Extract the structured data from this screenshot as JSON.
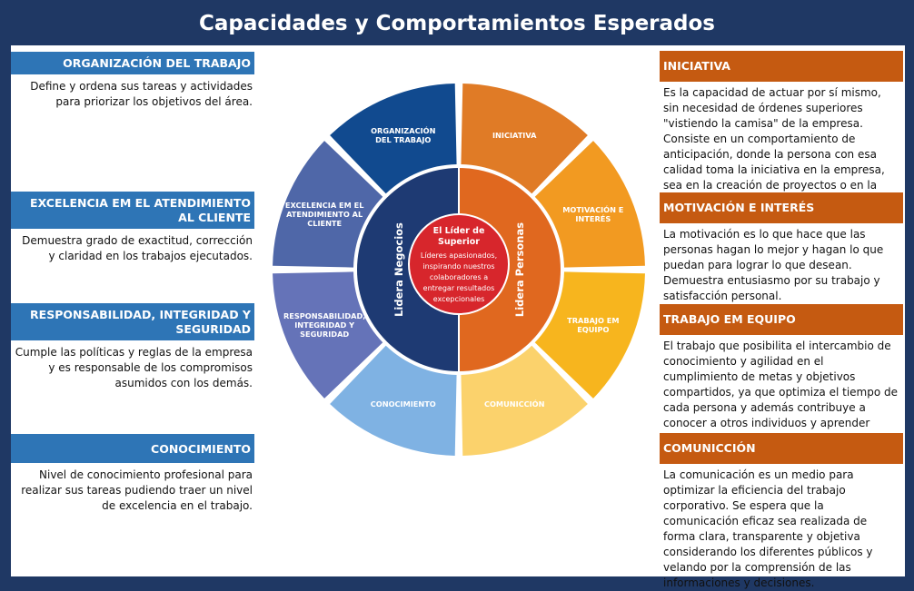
{
  "title": "Capacidades y Comportamientos Esperados",
  "left_items": [
    {
      "heading": "ORGANIZACIÓN DEL TRABAJO",
      "text": "Define y ordena sus tareas y actividades para priorizar los objetivos del área."
    },
    {
      "heading": "EXCELENCIA EM EL ATENDIMIENTO AL CLIENTE",
      "text": "Demuestra grado de exactitud, corrección y claridad en los trabajos ejecutados."
    },
    {
      "heading": "RESPONSABILIDAD, INTEGRIDAD Y SEGURIDAD",
      "text": "Cumple las políticas y reglas de la empresa y es responsable de los compromisos asumidos con los demás."
    },
    {
      "heading": "CONOCIMIENTO",
      "text": "Nivel de conocimiento profesional para realizar sus tareas pudiendo traer un nivel de excelencia en el trabajo."
    }
  ],
  "right_items": [
    {
      "heading": "INICIATIVA",
      "text": "Es la capacidad de actuar por sí mismo, sin necesidad de órdenes superiores \"vistiendo la camisa\" de la empresa. Consiste en un comportamiento de anticipación, donde la persona con esa calidad toma la iniciativa en la empresa, sea en la creación de proyectos o en la resolución de problemas."
    },
    {
      "heading": "MOTIVACIÓN E INTERÉS",
      "text": "La motivación es lo que hace que las personas hagan lo mejor y hagan lo que puedan para lograr lo que desean. Demuestra entusiasmo por su trabajo y satisfacción personal."
    },
    {
      "heading": "TRABAJO EM EQUIPO",
      "text": "El trabajo que posibilita el intercambio de conocimiento y agilidad en el cumplimiento de metas y objetivos compartidos, ya que optimiza el tiempo de cada persona y además contribuye a conocer a otros individuos y aprender nuevas tareas."
    },
    {
      "heading": "COMUNICCIÓN",
      "text": "La comunicación es un medio para optimizar la eficiencia del trabajo corporativo. Se espera que la comunicación eficaz sea realizada de forma clara, transparente y objetiva considerando los diferentes públicos y velando por la comprensión de las informaciones y decisiones."
    }
  ],
  "wheel": {
    "segments": [
      {
        "lines": [
          "INICIATIVA"
        ],
        "color": "#e07b26"
      },
      {
        "lines": [
          "MOTIVACIÓN E",
          "INTERÉS"
        ],
        "color": "#f29a21"
      },
      {
        "lines": [
          "TRABAJO EM",
          "EQUIPO"
        ],
        "color": "#f7b51e"
      },
      {
        "lines": [
          "COMUNICCIÓN"
        ],
        "color": "#fbd26c"
      },
      {
        "lines": [
          "CONOCIMIENTO"
        ],
        "color": "#7fb2e3"
      },
      {
        "lines": [
          "RESPONSABILIDAD,",
          "INTEGRIDAD Y",
          "SEGURIDAD"
        ],
        "color": "#6573b8"
      },
      {
        "lines": [
          "EXCELENCIA EM EL",
          "ATENDIMIENTO AL",
          "CLIENTE"
        ],
        "color": "#4f67a8"
      },
      {
        "lines": [
          "ORGANIZACIÓN",
          "DEL TRABAJO"
        ],
        "color": "#114a8f"
      }
    ],
    "left_ring_label": "Lidera Negocios",
    "right_ring_label": "Lidera Personas",
    "left_ring_color": "#1e3a73",
    "right_ring_color": "#e0681f",
    "core_title_lines": [
      "El Líder de",
      "Superior"
    ],
    "core_text_lines": [
      "Líderes apasionados,",
      "inspirando nuestros",
      "colaboradores a",
      "entregar resultados",
      "excepcionales"
    ],
    "core_color": "#d7262c"
  }
}
